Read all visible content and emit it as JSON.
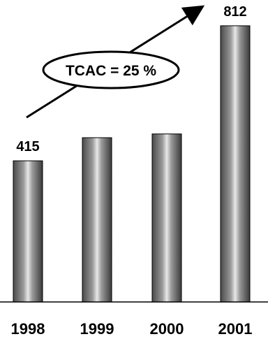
{
  "chart_data": {
    "type": "bar",
    "categories": [
      "1998",
      "1999",
      "2000",
      "2001"
    ],
    "values": [
      415,
      483,
      494,
      812
    ],
    "data_labels": [
      "415",
      "",
      "",
      "812"
    ],
    "annotation": {
      "text": "TCAC = 25 %",
      "shape": "ellipse",
      "arrow": "from 1998 to 2001"
    },
    "grid": false,
    "legend": "none"
  }
}
